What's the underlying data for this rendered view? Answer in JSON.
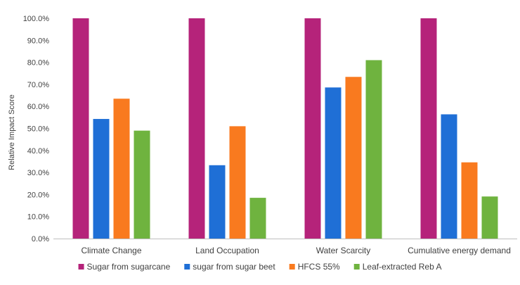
{
  "chart_data": {
    "type": "bar",
    "title": "",
    "xlabel": "",
    "ylabel": "Relative Impact Score",
    "ylim": [
      0,
      100
    ],
    "y_tick_step": 10,
    "y_tick_labels": [
      "0.0%",
      "10.0%",
      "20.0%",
      "30.0%",
      "40.0%",
      "50.0%",
      "60.0%",
      "70.0%",
      "80.0%",
      "90.0%",
      "100.0%"
    ],
    "grid": false,
    "legend_position": "bottom",
    "categories": [
      "Climate Change",
      "Land Occupation",
      "Water Scarcity",
      "Cumulative energy demand"
    ],
    "series": [
      {
        "name": "Sugar from sugarcane",
        "color": "#B5237A",
        "values": [
          100.0,
          100.0,
          100.0,
          100.0
        ]
      },
      {
        "name": "sugar from sugar beet",
        "color": "#1F6FD6",
        "values": [
          54.3,
          33.3,
          68.6,
          56.4
        ]
      },
      {
        "name": "HFCS 55%",
        "color": "#F97A1F",
        "values": [
          63.5,
          51.0,
          73.4,
          34.6
        ]
      },
      {
        "name": "Leaf-extracted Reb A",
        "color": "#6FB33F",
        "values": [
          49.0,
          18.5,
          81.0,
          19.1
        ]
      }
    ]
  }
}
